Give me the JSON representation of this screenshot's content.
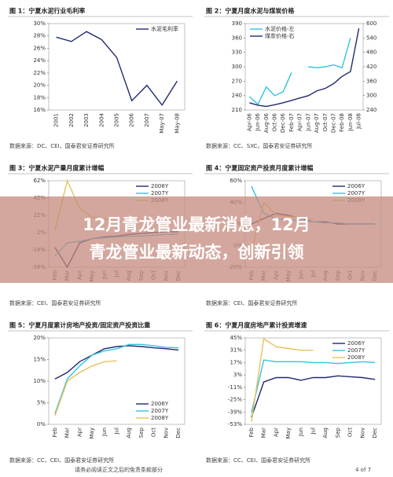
{
  "chart_data": [
    {
      "type": "line",
      "title": "图 1：宁夏水泥行业毛利率",
      "source": "数据来源：DC、CEI、国泰君安证券研究所",
      "legend": "upper right",
      "categories": [
        "2001",
        "2002",
        "2003",
        "2004",
        "2005",
        "2006",
        "2007",
        "May-07",
        "May-08"
      ],
      "series": [
        {
          "name": "水泥毛利率",
          "color": "#1f2a6e",
          "values": [
            27.8,
            27.1,
            28.7,
            27.4,
            24.5,
            17.5,
            20,
            16.8,
            20.7
          ]
        }
      ],
      "ylim": [
        16,
        30
      ],
      "yticks": [
        {
          "value": 16,
          "label": "16%"
        },
        {
          "value": 18,
          "label": "18%"
        },
        {
          "value": 20,
          "label": "20%"
        },
        {
          "value": 22,
          "label": "22%"
        },
        {
          "value": 24,
          "label": "24%"
        },
        {
          "value": 26,
          "label": "26%"
        },
        {
          "value": 28,
          "label": "28%"
        },
        {
          "value": 30,
          "label": "30%"
        }
      ]
    },
    {
      "type": "line",
      "title": "图 2：宁夏月度水泥与煤炭价格",
      "source": "数据来源：CC、SXC，国泰君安证券研究所",
      "legend": "upper left",
      "categories": [
        "Apr-06",
        "Jun-06",
        "Aug-06",
        "Oct-06",
        "Dec-06",
        "Feb-07",
        "Apr-07",
        "Jun-07",
        "Aug-07",
        "Oct-07",
        "Dec-07",
        "Feb-08",
        "Jun-08",
        "Jul-08"
      ],
      "series": [
        {
          "name": "水泥价格-左",
          "color": "#33c3e0",
          "values": [
            238,
            222,
            258,
            240,
            248,
            288,
            null,
            300,
            298,
            300,
            304,
            298,
            360,
            null
          ]
        },
        {
          "name": "煤炭价格-右",
          "color": "#1f2a6e",
          "axis": "y2",
          "values": [
            270,
            260,
            255,
            262,
            270,
            280,
            290,
            300,
            320,
            330,
            350,
            380,
            400,
            580
          ]
        }
      ],
      "ylim": [
        210,
        390
      ],
      "yticks": [
        210,
        240,
        270,
        300,
        330,
        360,
        390
      ],
      "y2lim": [
        240,
        600
      ],
      "y2ticks": [
        240,
        300,
        360,
        420,
        480,
        540,
        600
      ]
    },
    {
      "type": "line",
      "title": "图 3：宁夏水泥产量月度累计增幅",
      "source": "数据来源：CEI、国泰君安证券研究所",
      "legend": "upper right",
      "categories": [
        "Feb",
        "Mar",
        "Apr",
        "May",
        "Jun",
        "Jul",
        "Aug",
        "Sep",
        "Oct",
        "Nov",
        "Dec"
      ],
      "series": [
        {
          "name": "2006Y",
          "color": "#1f2a6e",
          "values": [
            -15,
            -38,
            -10,
            -5,
            -3,
            -2,
            0,
            1,
            2,
            3,
            3
          ]
        },
        {
          "name": "2007Y",
          "color": "#33c3e0",
          "values": [
            -25,
            -10,
            -8,
            -5,
            -4,
            -3,
            -2,
            -2,
            -1,
            0,
            0
          ]
        },
        {
          "name": "2008Y",
          "color": "#e8c15a",
          "values": [
            5,
            62,
            30,
            20,
            18,
            15,
            null,
            null,
            null,
            null,
            null
          ]
        }
      ],
      "ylim": [
        -38,
        62
      ],
      "yticks": [
        {
          "value": -38,
          "label": "-38%"
        },
        {
          "value": -18,
          "label": "-18%"
        },
        {
          "value": 2,
          "label": "2%"
        },
        {
          "value": 22,
          "label": "22%"
        },
        {
          "value": 42,
          "label": "42%"
        },
        {
          "value": 62,
          "label": "62%"
        }
      ]
    },
    {
      "type": "line",
      "title": "图 4：宁夏固定资产投资月度累计增幅",
      "source": "数据来源：CEI、国泰君安证券研究所",
      "legend": "upper right",
      "categories": [
        "Feb",
        "Mar",
        "Apr",
        "May",
        "Jun",
        "Jul",
        "Aug",
        "Sep",
        "Oct",
        "Nov",
        "Dec"
      ],
      "series": [
        {
          "name": "2006Y",
          "color": "#1f2a6e",
          "values": [
            20,
            25,
            30,
            28,
            25,
            22,
            22,
            20,
            20,
            20,
            20
          ]
        },
        {
          "name": "2007Y",
          "color": "#33c3e0",
          "values": [
            55,
            30,
            25,
            24,
            23,
            22,
            21,
            21,
            20,
            20,
            20
          ]
        },
        {
          "name": "2008Y",
          "color": "#e8c15a",
          "values": [
            -5,
            40,
            28,
            27,
            26,
            25,
            null,
            null,
            null,
            null,
            null
          ]
        }
      ],
      "ylim": [
        -20,
        60
      ],
      "yticks": [
        {
          "value": -20,
          "label": "-20%"
        },
        {
          "value": 0,
          "label": "0%"
        },
        {
          "value": 20,
          "label": "20%"
        },
        {
          "value": 40,
          "label": "40%"
        },
        {
          "value": 60,
          "label": "60%"
        }
      ]
    },
    {
      "type": "line",
      "title": "图 5：宁夏月度累计房地产投资/固定资产投资比重",
      "source": "数据来源：CC、CEI、国泰君安证券研究所",
      "legend": "lower right",
      "categories": [
        "Feb",
        "Mar",
        "Apr",
        "May",
        "Jun",
        "Jul",
        "Aug",
        "Sep",
        "Oct",
        "Nov",
        "Dec"
      ],
      "series": [
        {
          "name": "2006Y",
          "color": "#1f2a6e",
          "values": [
            10.5,
            12,
            14.5,
            16,
            17.5,
            18,
            18.2,
            18,
            17.7,
            17.5,
            17.2
          ]
        },
        {
          "name": "2007Y",
          "color": "#33c3e0",
          "values": [
            2.5,
            10.5,
            13.5,
            16,
            17,
            17.5,
            18.5,
            18.5,
            18.2,
            17.8,
            17.7
          ]
        },
        {
          "name": "2008Y",
          "color": "#e8c15a",
          "values": [
            2,
            10,
            12,
            13.5,
            14.5,
            14.7,
            null,
            null,
            null,
            null,
            null
          ]
        }
      ],
      "ylim": [
        0,
        20
      ],
      "yticks": [
        {
          "value": 0,
          "label": "0%"
        },
        {
          "value": 5,
          "label": "5%"
        },
        {
          "value": 10,
          "label": "10%"
        },
        {
          "value": 15,
          "label": "15%"
        },
        {
          "value": 20,
          "label": "20%"
        }
      ]
    },
    {
      "type": "line",
      "title": "图 6：宁夏月度房地产累计投资增速",
      "source": "数据来源：CC、CEI、国泰君安证券研究所",
      "legend": "upper right",
      "categories": [
        "Feb",
        "Mar",
        "Apr",
        "May",
        "Jun",
        "Jul",
        "Aug",
        "Sep",
        "Oct",
        "Nov",
        "Dec"
      ],
      "series": [
        {
          "name": "2006Y",
          "color": "#1f2a6e",
          "values": [
            -45,
            -5,
            0,
            0,
            -3,
            0,
            0,
            2,
            1,
            0,
            -2
          ]
        },
        {
          "name": "2007Y",
          "color": "#33c3e0",
          "values": [
            -40,
            20,
            18,
            18,
            18,
            17,
            17,
            16,
            17,
            18,
            17
          ]
        },
        {
          "name": "2008Y",
          "color": "#e8c15a",
          "values": [
            -50,
            44,
            35,
            33,
            31,
            31,
            null,
            null,
            null,
            null,
            null
          ]
        }
      ],
      "ylim": [
        -53,
        45
      ],
      "yticks": [
        {
          "value": -53,
          "label": "-53%"
        },
        {
          "value": -39,
          "label": "-39%"
        },
        {
          "value": -25,
          "label": "-25%"
        },
        {
          "value": -11,
          "label": "-11%"
        },
        {
          "value": 3,
          "label": "3%"
        },
        {
          "value": 17,
          "label": "17%"
        },
        {
          "value": 31,
          "label": "31%"
        },
        {
          "value": 45,
          "label": "45%"
        }
      ]
    }
  ],
  "banner": {
    "line1": "12月青龙管业最新消息，12月",
    "line2": "青龙管业最新动态，创新引领"
  },
  "footer": {
    "disclaimer": "请务必阅读正文之后的免责条款部分",
    "page": "4 of 7"
  }
}
